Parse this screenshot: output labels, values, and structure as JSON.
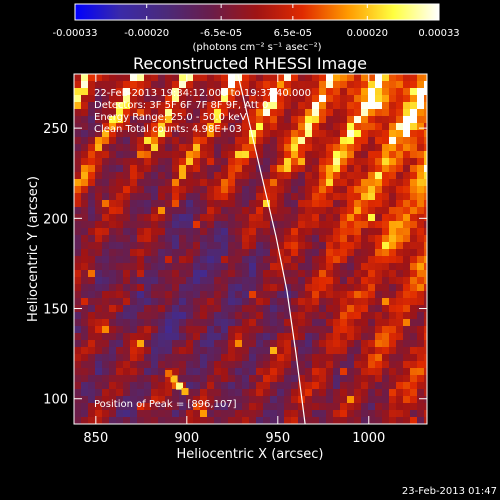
{
  "chart_data": {
    "type": "heatmap",
    "title": "Reconstructed RHESSI Image",
    "xlabel": "Heliocentric X (arcsec)",
    "ylabel": "Heliocentric Y (arcsec)",
    "xlim": [
      838,
      1032
    ],
    "ylim": [
      86,
      280
    ],
    "x_ticks": [
      850,
      900,
      950,
      1000
    ],
    "y_ticks": [
      100,
      150,
      200,
      250
    ],
    "colorbar": {
      "range": [
        -0.00033,
        0.00033
      ],
      "ticks": [
        -0.00033,
        -0.0002,
        -6.5e-05,
        6.5e-05,
        0.0002,
        0.00033
      ],
      "tick_labels": [
        "-0.00033",
        "-0.00020",
        "-6.5e-05",
        "6.5e-05",
        "0.00020",
        "0.00033"
      ],
      "unit_label": "(photons cm⁻² s⁻¹ asec⁻²)",
      "colors": [
        "#0000ff",
        "#3a2aa8",
        "#4b2a7a",
        "#6a1d4a",
        "#a01414",
        "#e02a00",
        "#ff9a00",
        "#ffff40",
        "#ffffff"
      ]
    },
    "annotations": [
      "22-Feb-2013 19:34:12.000 to 19:37:40.000",
      "Detectors: 3F 5F 6F 7F 8F 9F, Att 0",
      "Energy Range: 25.0 - 50.0 keV",
      "Clean    Total counts: 4.98E+03"
    ],
    "peak_label": "Position of Peak = [896,107]",
    "limb_curve": {
      "x": [
        928,
        935,
        942,
        949,
        955,
        960,
        965
      ],
      "y": [
        280,
        250,
        220,
        190,
        160,
        125,
        86
      ]
    }
  },
  "footer": {
    "timestamp": "23-Feb-2013 01:47"
  }
}
